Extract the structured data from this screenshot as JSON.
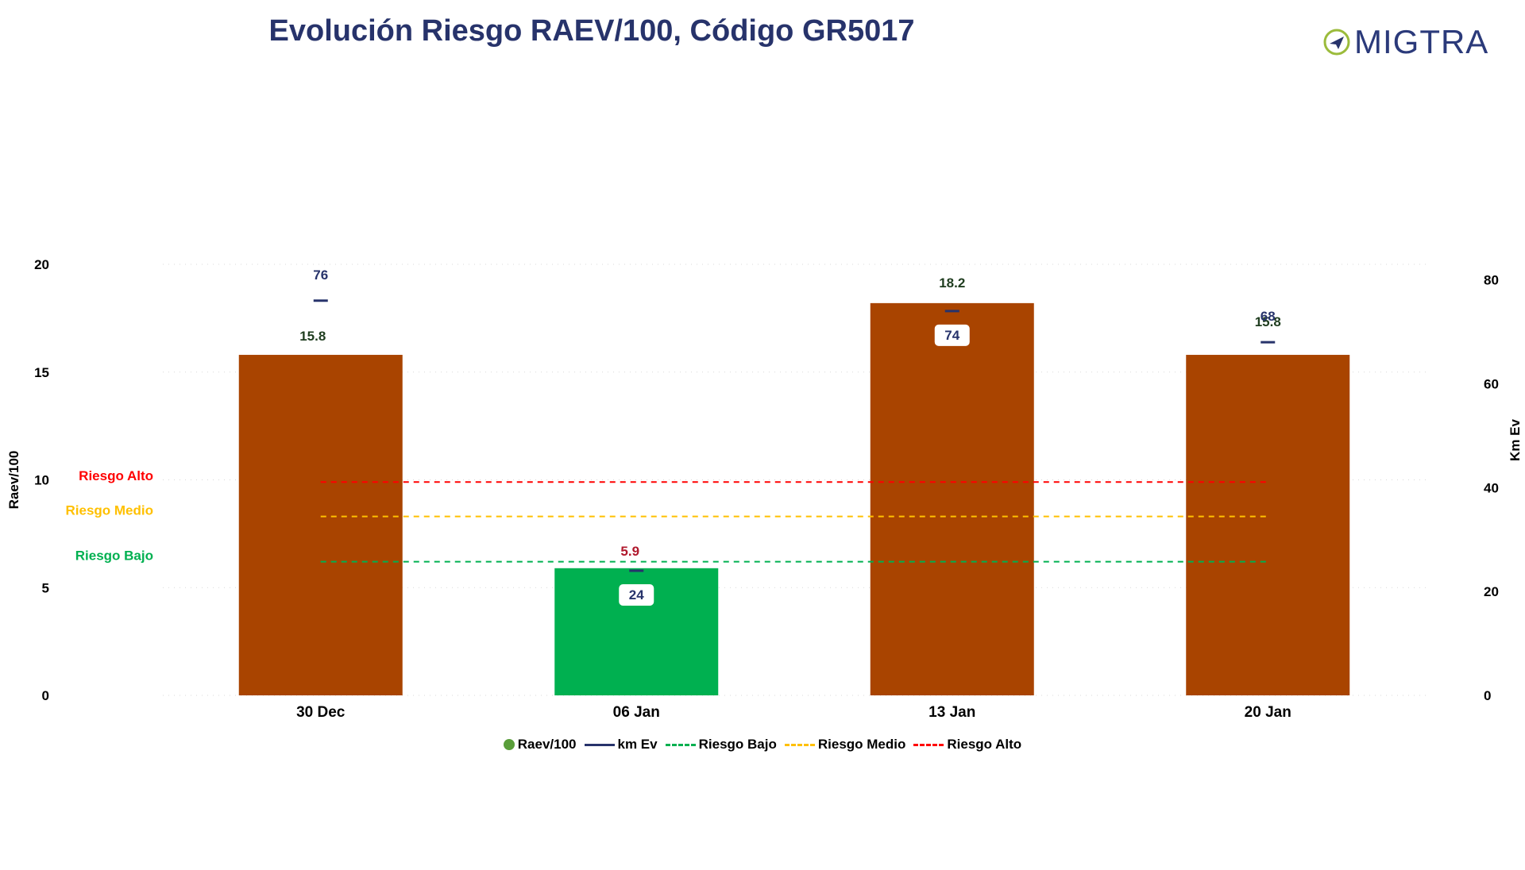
{
  "header": {
    "title": "Evolución Riesgo RAEV/100, Código GR5017",
    "logo_text": "MIGTRA"
  },
  "colors": {
    "title": "#27336b",
    "bar_high": "#a94400",
    "bar_low": "#00b050",
    "km_line": "#27336b",
    "riesgo_bajo": "#00b050",
    "riesgo_medio": "#ffc000",
    "riesgo_alto": "#ff0000",
    "label_dark_green": "#1f3d1f",
    "label_red": "#b0182c",
    "logo_ring": "#9bbb3b"
  },
  "chart_data": {
    "type": "bar",
    "categories": [
      "30 Dec",
      "06 Jan",
      "13 Jan",
      "20 Jan"
    ],
    "ylabel": "Raev/100",
    "y2label": "Km Ev",
    "ylim": [
      0,
      20
    ],
    "y2lim": [
      0,
      83
    ],
    "yticks": [
      0,
      5,
      10,
      15,
      20
    ],
    "y2ticks": [
      0,
      20,
      40,
      60,
      80
    ],
    "grid": true,
    "legend_position": "bottom",
    "series": [
      {
        "name": "Raev/100",
        "axis": "left",
        "kind": "bar",
        "values": [
          15.8,
          5.9,
          18.2,
          15.8
        ],
        "labels": [
          "15.8",
          "5.9",
          "18.2",
          "15.8"
        ]
      },
      {
        "name": "km Ev",
        "axis": "right",
        "kind": "marker",
        "values": [
          76,
          24,
          74,
          68
        ],
        "labels": [
          "76",
          "24",
          "74",
          "68"
        ]
      },
      {
        "name": "Riesgo Bajo",
        "axis": "left",
        "kind": "threshold",
        "value": 6.2
      },
      {
        "name": "Riesgo Medio",
        "axis": "left",
        "kind": "threshold",
        "value": 8.3
      },
      {
        "name": "Riesgo Alto",
        "axis": "left",
        "kind": "threshold",
        "value": 9.9
      }
    ]
  },
  "legend": {
    "items": [
      {
        "label": "Raev/100",
        "style": "dot",
        "color": "#5a9e3a"
      },
      {
        "label": "km Ev",
        "style": "solid",
        "color": "#27336b"
      },
      {
        "label": "Riesgo Bajo",
        "style": "dashed",
        "color": "#00b050"
      },
      {
        "label": "Riesgo Medio",
        "style": "dashed",
        "color": "#ffc000"
      },
      {
        "label": "Riesgo Alto",
        "style": "dashed",
        "color": "#ff0000"
      }
    ]
  }
}
